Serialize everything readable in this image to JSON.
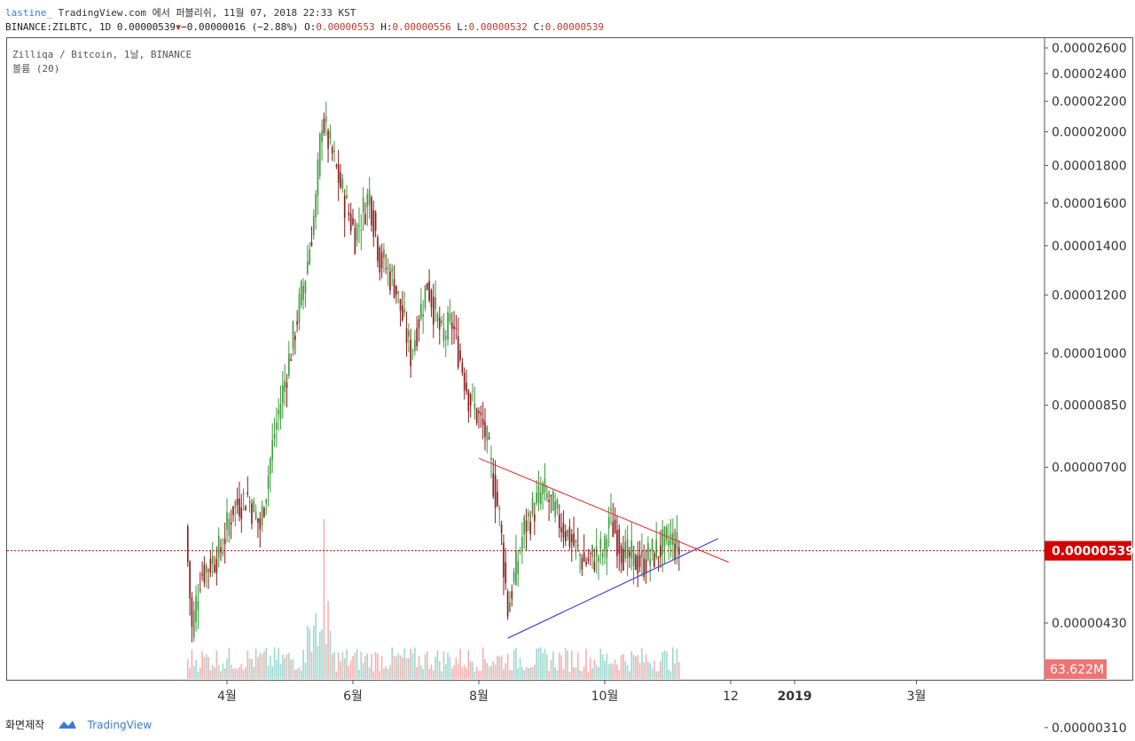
{
  "header": {
    "user": "lastine_",
    "source": "TradingView.com 에서 퍼블리쉬, 11월 07, 2018 22:33 KST",
    "symbol": "BINANCE:ZILBTC, 1D 0.00000539",
    "change": "−0.00000016 (−2.88%)",
    "o_label": "O:",
    "o_val": "0.00000553",
    "h_label": "H:",
    "h_val": "0.00000556",
    "l_label": "L:",
    "l_val": "0.00000532",
    "c_label": "C:",
    "c_val": "0.00000539"
  },
  "legend": {
    "pair": "Zilliqa / Bitcoin, 1날, BINANCE",
    "volume": "볼륨 (20)"
  },
  "footer": {
    "made": "화면제작",
    "brand": "TradingView"
  },
  "colors": {
    "up": "#3d9b3d",
    "down": "#8b1a1a",
    "vol_up": "#8fd1c9",
    "vol_down": "#f5a3a3",
    "resistance": "#e0413e",
    "support": "#4b3fd6",
    "last_price": "#d50000"
  },
  "chart_data": {
    "type": "candlestick",
    "y_scale": "log",
    "y_range": [
      2.8e-06,
      2.7e-06
    ],
    "ylim": [
      2.9e-06,
      2.7e-06
    ],
    "y_ticks": [
      "0.00002600",
      "0.00002400",
      "0.00002200",
      "0.00002000",
      "0.00001800",
      "0.00001600",
      "0.00001400",
      "0.00001200",
      "0.00001000",
      "0.00000850",
      "0.00000700",
      "0.00000430",
      "0.00000310"
    ],
    "y_tick_values": [
      2.6e-05,
      2.4e-05,
      2.2e-05,
      2e-05,
      1.8e-05,
      1.6e-05,
      1.4e-05,
      1.2e-05,
      1e-05,
      8.5e-06,
      7e-06,
      4.3e-06,
      3.1e-06
    ],
    "x_ticks": [
      "4월",
      "6월",
      "8월",
      "10월",
      "12",
      "2019",
      "3월"
    ],
    "x_tick_dates": [
      "2018-04-01",
      "2018-06-01",
      "2018-08-01",
      "2018-10-01",
      "2018-12-01",
      "2019-01-01",
      "2019-03-01"
    ],
    "x_tick_bold": [
      false,
      false,
      false,
      false,
      false,
      true,
      false
    ],
    "x_range": [
      "2018-02-24",
      "2019-04-03"
    ],
    "last_price_label": "0.00000539",
    "last_price": 5.39e-06,
    "volume_label": "63.622M",
    "series_dates": [
      "2018-03-13",
      "2018-11-07"
    ],
    "price_path": [
      {
        "date": "2018-03-13",
        "price": 5.8e-06
      },
      {
        "date": "2018-03-16",
        "price": 4.2e-06
      },
      {
        "date": "2018-03-20",
        "price": 5e-06
      },
      {
        "date": "2018-03-30",
        "price": 5.4e-06
      },
      {
        "date": "2018-04-05",
        "price": 6.2e-06
      },
      {
        "date": "2018-04-12",
        "price": 6.4e-06
      },
      {
        "date": "2018-04-18",
        "price": 5.8e-06
      },
      {
        "date": "2018-04-25",
        "price": 7.8e-06
      },
      {
        "date": "2018-05-02",
        "price": 9.8e-06
      },
      {
        "date": "2018-05-10",
        "price": 1.28e-05
      },
      {
        "date": "2018-05-15",
        "price": 1.6e-05
      },
      {
        "date": "2018-05-18",
        "price": 2.1e-05
      },
      {
        "date": "2018-05-22",
        "price": 1.9e-05
      },
      {
        "date": "2018-05-28",
        "price": 1.65e-05
      },
      {
        "date": "2018-06-03",
        "price": 1.45e-05
      },
      {
        "date": "2018-06-10",
        "price": 1.65e-05
      },
      {
        "date": "2018-06-15",
        "price": 1.35e-05
      },
      {
        "date": "2018-06-22",
        "price": 1.25e-05
      },
      {
        "date": "2018-06-30",
        "price": 1e-05
      },
      {
        "date": "2018-07-08",
        "price": 1.25e-05
      },
      {
        "date": "2018-07-15",
        "price": 1.05e-05
      },
      {
        "date": "2018-07-20",
        "price": 1.1e-05
      },
      {
        "date": "2018-07-28",
        "price": 8.8e-06
      },
      {
        "date": "2018-08-05",
        "price": 7.8e-06
      },
      {
        "date": "2018-08-12",
        "price": 6e-06
      },
      {
        "date": "2018-08-16",
        "price": 4.5e-06
      },
      {
        "date": "2018-08-24",
        "price": 5.8e-06
      },
      {
        "date": "2018-09-02",
        "price": 6.5e-06
      },
      {
        "date": "2018-09-12",
        "price": 5.8e-06
      },
      {
        "date": "2018-09-22",
        "price": 5.2e-06
      },
      {
        "date": "2018-10-02",
        "price": 5.4e-06
      },
      {
        "date": "2018-10-04",
        "price": 6e-06
      },
      {
        "date": "2018-10-12",
        "price": 5.3e-06
      },
      {
        "date": "2018-10-20",
        "price": 5.2e-06
      },
      {
        "date": "2018-10-28",
        "price": 5.4e-06
      },
      {
        "date": "2018-11-03",
        "price": 5.6e-06
      },
      {
        "date": "2018-11-07",
        "price": 5.39e-06
      }
    ],
    "volume_spikes": [
      {
        "date": "2018-05-18",
        "value": 63.6
      },
      {
        "date": "2018-05-01",
        "value": 30
      },
      {
        "date": "2018-05-11",
        "value": 35
      }
    ],
    "trendlines": [
      {
        "name": "resistance",
        "from": {
          "date": "2018-08-01",
          "price": 7.2e-06
        },
        "to": {
          "date": "2018-11-30",
          "price": 5.2e-06
        }
      },
      {
        "name": "support",
        "from": {
          "date": "2018-08-15",
          "price": 4.1e-06
        },
        "to": {
          "date": "2018-11-25",
          "price": 5.6e-06
        }
      }
    ],
    "grid": false,
    "legend_position": "top-left"
  }
}
